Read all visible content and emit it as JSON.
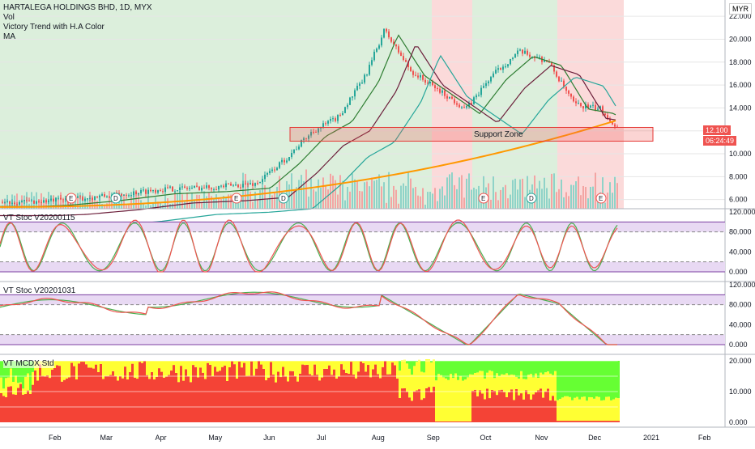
{
  "header": {
    "title": "HARTALEGA HOLDINGS BHD, 1D, MYX",
    "indicators": [
      "Vol",
      "Victory Trend with H.A Color",
      "MA"
    ],
    "currency": "MYR"
  },
  "price_axis": {
    "ticks": [
      "22.000",
      "20.000",
      "18.000",
      "16.000",
      "14.000",
      "10.000",
      "8.000",
      "6.000"
    ],
    "last_price": "12.100",
    "countdown": "06:24:49"
  },
  "support_zone": {
    "label": "Support Zone",
    "low": 11.1,
    "high": 12.3
  },
  "panes": [
    {
      "title": "VT Stoc V20200115",
      "ticks": [
        "120.000",
        "80.000",
        "40.000",
        "0.000"
      ]
    },
    {
      "title": "VT Stoc V20201031",
      "ticks": [
        "120.000",
        "80.000",
        "40.000",
        "0.000"
      ]
    },
    {
      "title": "VT MCDX Std",
      "ticks": [
        "20.000",
        "10.000",
        "0.000"
      ]
    }
  ],
  "time_axis": [
    "Feb",
    "Mar",
    "Apr",
    "May",
    "Jun",
    "Jul",
    "Aug",
    "Sep",
    "Oct",
    "Nov",
    "Dec",
    "2021",
    "Feb"
  ],
  "event_markers": [
    "E",
    "D",
    "E",
    "D",
    "E",
    "D",
    "E",
    "D"
  ],
  "colors": {
    "up": "#26a69a",
    "down": "#ef5350",
    "ma_orange": "#ff9800",
    "bg_green": "#dcefdc",
    "bg_red": "#fbdada",
    "band_purple": "#e8d9f3",
    "mcdx_red": "#f44336",
    "mcdx_yellow": "#ffff33",
    "mcdx_green": "#66ff33"
  },
  "chart_data": {
    "type": "line",
    "title": "HARTALEGA HOLDINGS BHD, 1D, MYX",
    "x": [
      "2020-01-15",
      "2020-02-01",
      "2020-03-01",
      "2020-04-01",
      "2020-05-01",
      "2020-05-25",
      "2020-06-10",
      "2020-06-25",
      "2020-07-10",
      "2020-07-25",
      "2020-08-05",
      "2020-08-20",
      "2020-09-05",
      "2020-09-20",
      "2020-10-05",
      "2020-10-20",
      "2020-11-05",
      "2020-11-20",
      "2020-12-05",
      "2020-12-15"
    ],
    "series": [
      {
        "values": [
          5.8,
          5.9,
          6.3,
          6.9,
          7.1,
          7.4,
          9.5,
          11.9,
          13.2,
          16.7,
          20.8,
          17.2,
          15.5,
          13.9,
          16.9,
          18.9,
          18.1,
          14.3,
          13.9,
          12.1
        ]
      }
    ],
    "ylim": [
      5.2,
      23
    ],
    "grid": true
  }
}
